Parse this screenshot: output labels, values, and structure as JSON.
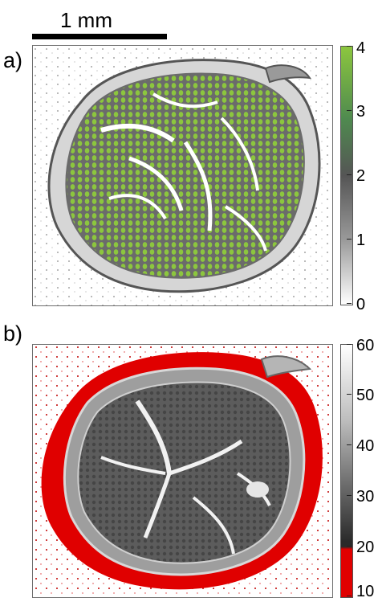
{
  "scale_bar": {
    "label": "1 mm"
  },
  "panels": [
    {
      "label": "a)",
      "colorbar": {
        "ticks": [
          "4",
          "3",
          "2",
          "1",
          "0"
        ],
        "colors": [
          "#8cc63e",
          "#4f8a4f",
          "#555555",
          "#9a9a9a",
          "#ffffff"
        ]
      }
    },
    {
      "label": "b)",
      "colorbar": {
        "ticks": [
          "60",
          "50",
          "40",
          "30",
          "20",
          "10"
        ],
        "colors": [
          "#ffffff",
          "#bdbdbd",
          "#6e6e6e",
          "#2a2a2a",
          "#e00000"
        ]
      }
    }
  ]
}
